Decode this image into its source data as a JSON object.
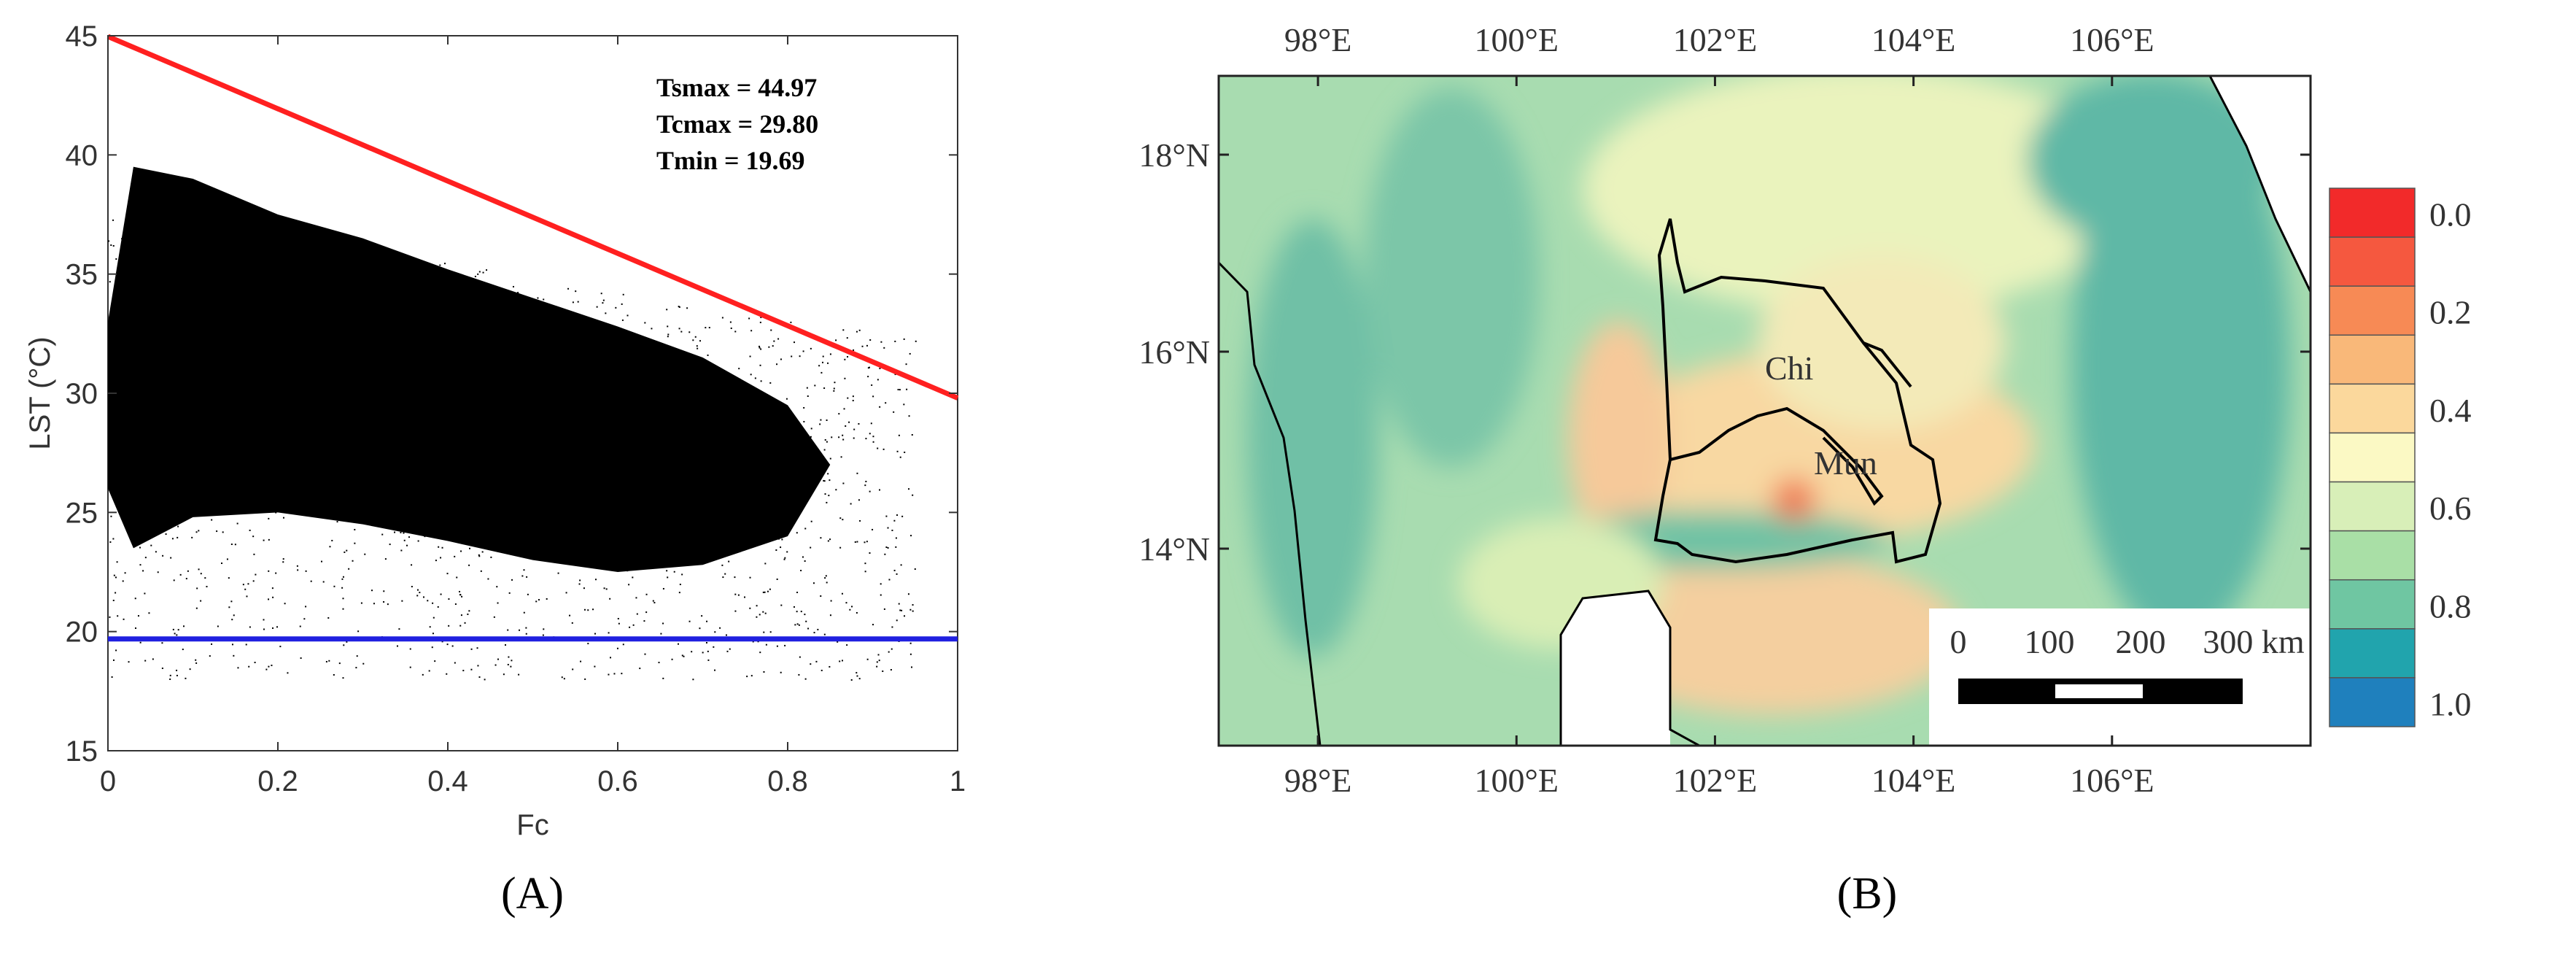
{
  "panels": {
    "a_label": "(A)",
    "b_label": "(B)"
  },
  "chart_data": [
    {
      "type": "scatter",
      "xlabel": "Fc",
      "ylabel": "LST (°C)",
      "xlim": [
        0,
        1
      ],
      "ylim": [
        15,
        45
      ],
      "xticks": [
        "0",
        "0.2",
        "0.4",
        "0.6",
        "0.8",
        "1"
      ],
      "yticks": [
        "15",
        "20",
        "25",
        "30",
        "35",
        "40",
        "45"
      ],
      "grid": false,
      "point_color": "#000000",
      "cloud_envelope": {
        "fc": [
          0.0,
          0.03,
          0.1,
          0.2,
          0.3,
          0.4,
          0.5,
          0.6,
          0.7,
          0.8,
          0.85,
          0.8,
          0.7,
          0.6,
          0.5,
          0.4,
          0.3,
          0.2,
          0.1,
          0.03,
          0.0
        ],
        "lst": [
          33,
          39.5,
          39,
          37.5,
          36.5,
          35.2,
          34.0,
          32.8,
          31.5,
          29.5,
          27,
          24,
          22.8,
          22.5,
          23,
          23.8,
          24.5,
          25,
          24.8,
          23.5,
          26
        ]
      },
      "lines": [
        {
          "name": "Tsmax line (warm edge)",
          "color": "#ff2020",
          "x": [
            0,
            1
          ],
          "y": [
            44.97,
            29.8
          ]
        },
        {
          "name": "Tmin line",
          "color": "#2020e0",
          "x": [
            0,
            1
          ],
          "y": [
            19.69,
            19.69
          ]
        }
      ],
      "annotations": [
        "Tsmax = 44.97",
        "Tcmax = 29.80",
        "Tmin = 19.69"
      ]
    },
    {
      "type": "heatmap",
      "map": true,
      "xticks": [
        "98°E",
        "100°E",
        "102°E",
        "104°E",
        "106°E"
      ],
      "yticks": [
        "18°N",
        "16°N",
        "14°N"
      ],
      "lon_range": [
        97,
        108
      ],
      "lat_range": [
        12,
        18.8
      ],
      "region_labels": [
        "Chi",
        "Mun"
      ],
      "scale_bar": {
        "labels": [
          "0",
          "100",
          "200",
          "300 km"
        ]
      },
      "colorbar": {
        "ticks": [
          "0.0",
          "0.2",
          "0.4",
          "0.6",
          "0.8",
          "1.0"
        ],
        "colors": [
          "#f22a2a",
          "#f5583f",
          "#f78a55",
          "#f9b879",
          "#fbd89c",
          "#fbf9c4",
          "#d8efb8",
          "#a9dfa6",
          "#6fc6a2",
          "#21a4ad",
          "#1f80bd"
        ]
      }
    }
  ]
}
